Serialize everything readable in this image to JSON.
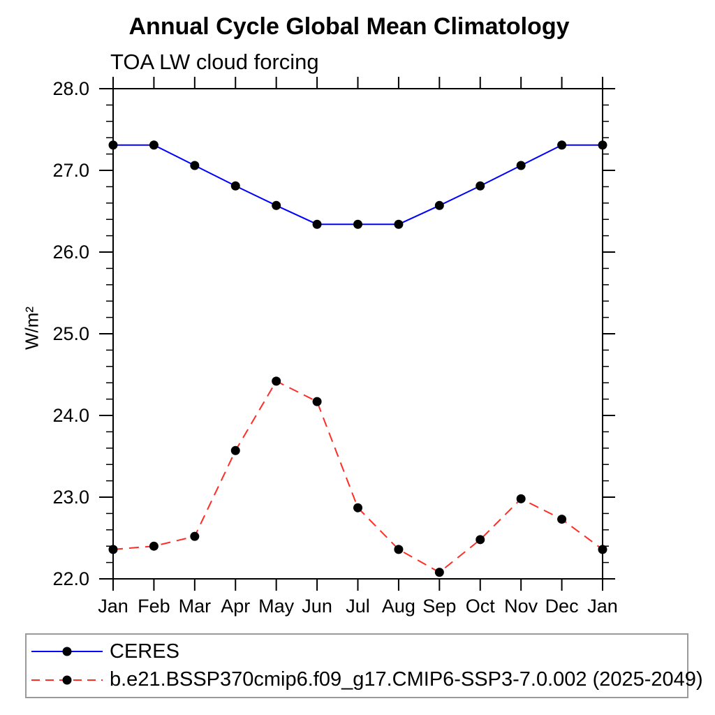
{
  "chart_data": {
    "type": "line",
    "title": "Annual Cycle Global Mean Climatology",
    "subtitle": "TOA LW cloud forcing",
    "xlabel": "",
    "ylabel": "W/m²",
    "categories": [
      "Jan",
      "Feb",
      "Mar",
      "Apr",
      "May",
      "Jun",
      "Jul",
      "Aug",
      "Sep",
      "Oct",
      "Nov",
      "Dec",
      "Jan"
    ],
    "ylim": [
      22.0,
      28.0
    ],
    "ytick_interval": 1.0,
    "yminor_interval": 0.2,
    "ytick_format_decimals": 1,
    "grid": false,
    "legend_position": "bottom",
    "frame_color": "#000000",
    "marker_shape": "filled-circle",
    "series": [
      {
        "name": "CERES",
        "color": "#0000ff",
        "style": "solid",
        "marker_color": "#000000",
        "values": [
          27.31,
          27.31,
          27.06,
          26.81,
          26.57,
          26.34,
          26.34,
          26.34,
          26.57,
          26.81,
          27.06,
          27.31,
          27.31
        ]
      },
      {
        "name": "b.e21.BSSP370cmip6.f09_g17.CMIP6-SSP3-7.0.002 (2025-2049)",
        "color": "#ff2d26",
        "style": "dashed",
        "marker_color": "#000000",
        "values": [
          22.36,
          22.4,
          22.52,
          23.57,
          24.42,
          24.17,
          22.87,
          22.36,
          22.08,
          22.48,
          22.98,
          22.73,
          22.36
        ]
      }
    ]
  }
}
